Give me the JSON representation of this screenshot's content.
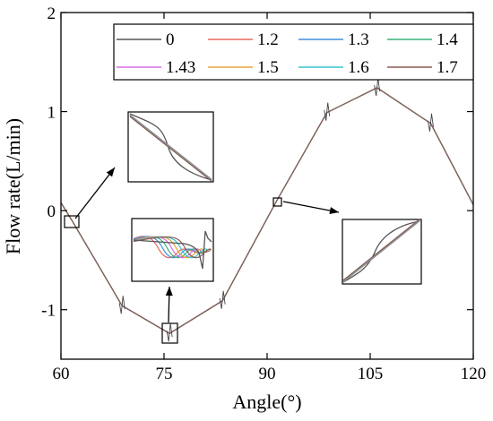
{
  "chart_data": {
    "type": "line",
    "xlabel": "Angle(°)",
    "ylabel": "Flow rate(L/min)",
    "xlim": [
      60,
      120
    ],
    "ylim": [
      -1.5,
      2.0
    ],
    "xticks": [
      60,
      75,
      90,
      105,
      120
    ],
    "xtick_labels": [
      "60",
      "75",
      "90",
      "105",
      "120"
    ],
    "yticks": [
      -1,
      0,
      1,
      2
    ],
    "ytick_labels": [
      "-1",
      "0",
      "1",
      "2"
    ],
    "grid": false,
    "legend_placement": "top-right",
    "legend_columns": 4,
    "series": [
      {
        "name": "0",
        "color": "#555555"
      },
      {
        "name": "1.2",
        "color": "#e8695e"
      },
      {
        "name": "1.3",
        "color": "#3f8fdb"
      },
      {
        "name": "1.4",
        "color": "#35b37a"
      },
      {
        "name": "1.43",
        "color": "#d86fe0"
      },
      {
        "name": "1.5",
        "color": "#e8a33a"
      },
      {
        "name": "1.6",
        "color": "#34c6c9"
      },
      {
        "name": "1.7",
        "color": "#8b5a54"
      }
    ],
    "x": [
      60,
      61.6,
      68.9,
      75.8,
      83.5,
      91.4,
      98.7,
      106,
      113.8,
      120
    ],
    "y": [
      0.08,
      -0.1,
      -0.96,
      -1.24,
      -0.91,
      0.1,
      0.99,
      1.24,
      0.88,
      0.06
    ]
  }
}
